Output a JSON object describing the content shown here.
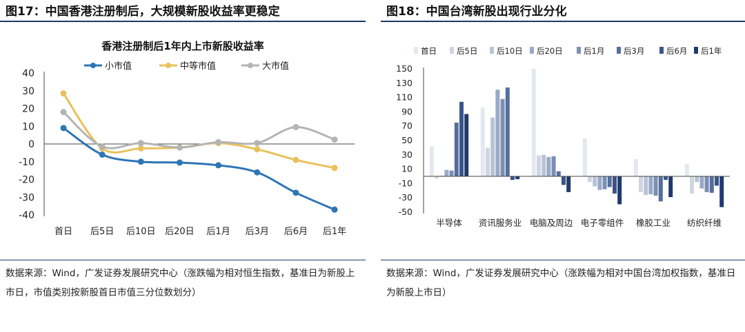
{
  "left": {
    "fig_title": "图17：中国香港注册制后，大规模新股收益率更稳定",
    "source": "数据来源：Wind，广发证券发展研究中心（涨跌幅为相对恒生指数，基准日为新股上市日，市值类别按新股首日市值三分位数划分）"
  },
  "right": {
    "fig_title": "图18：中国台湾新股出现行业分化",
    "source": "数据来源：Wind，广发证券发展研究中心（涨跌幅为相对中国台湾加权指数，基准日为新股上市日）"
  },
  "chart_data": [
    {
      "type": "line",
      "title": "香港注册制后1年内上市新股收益率",
      "categories": [
        "首日",
        "后5日",
        "后10日",
        "后20日",
        "后1月",
        "后3月",
        "后6月",
        "后1年"
      ],
      "ylim": [
        -40,
        40
      ],
      "yticks": [
        "40",
        "30",
        "20",
        "10",
        "0",
        "-10",
        "-20",
        "-30",
        "-40"
      ],
      "legend_position": "top",
      "series": [
        {
          "name": "小市值",
          "color": "#2e75b6",
          "values": [
            9,
            -6,
            -10,
            -10.5,
            -12,
            -16,
            -27.5,
            -37
          ]
        },
        {
          "name": "中等市值",
          "color": "#e8c15b",
          "values": [
            28.5,
            -2.5,
            -2.5,
            -2,
            0.5,
            -3,
            -9,
            -13.5
          ]
        },
        {
          "name": "大市值",
          "color": "#b4b4b4",
          "values": [
            18,
            -1.5,
            0.5,
            -2,
            1,
            0.5,
            9.5,
            2.5
          ]
        }
      ]
    },
    {
      "type": "bar",
      "categories": [
        "半导体",
        "资讯服务业",
        "电脑及周边",
        "电子零组件",
        "橡胶工业",
        "纺织纤维"
      ],
      "ylim": [
        -50,
        150
      ],
      "yticks": [
        "150",
        "130",
        "110",
        "90",
        "70",
        "50",
        "30",
        "10",
        "-10",
        "-30",
        "-50"
      ],
      "legend_position": "top",
      "series": [
        {
          "name": "首日",
          "color": "#e3e8f0",
          "values": [
            42,
            96,
            150,
            53,
            24,
            17
          ]
        },
        {
          "name": "后5日",
          "color": "#cfd6e2",
          "values": [
            -3,
            40,
            29,
            -8,
            -22,
            -24
          ]
        },
        {
          "name": "后10日",
          "color": "#b8c3d6",
          "values": [
            1,
            82,
            30,
            -14,
            -26,
            -8
          ]
        },
        {
          "name": "后20日",
          "color": "#9aaac6",
          "values": [
            9,
            121,
            27,
            -19,
            -25,
            -17
          ]
        },
        {
          "name": "后1月",
          "color": "#7a8fb5",
          "values": [
            8,
            108,
            28,
            -18,
            -27,
            -22
          ]
        },
        {
          "name": "后3月",
          "color": "#566e9d",
          "values": [
            75,
            124,
            7,
            -15,
            -35,
            -23
          ]
        },
        {
          "name": "后6月",
          "color": "#3b5586",
          "values": [
            104,
            -5,
            -12,
            -24,
            -5,
            -13
          ]
        },
        {
          "name": "后1年",
          "color": "#1f3a6e",
          "values": [
            87,
            -4,
            -22,
            -39,
            -29,
            -43
          ]
        }
      ]
    }
  ]
}
